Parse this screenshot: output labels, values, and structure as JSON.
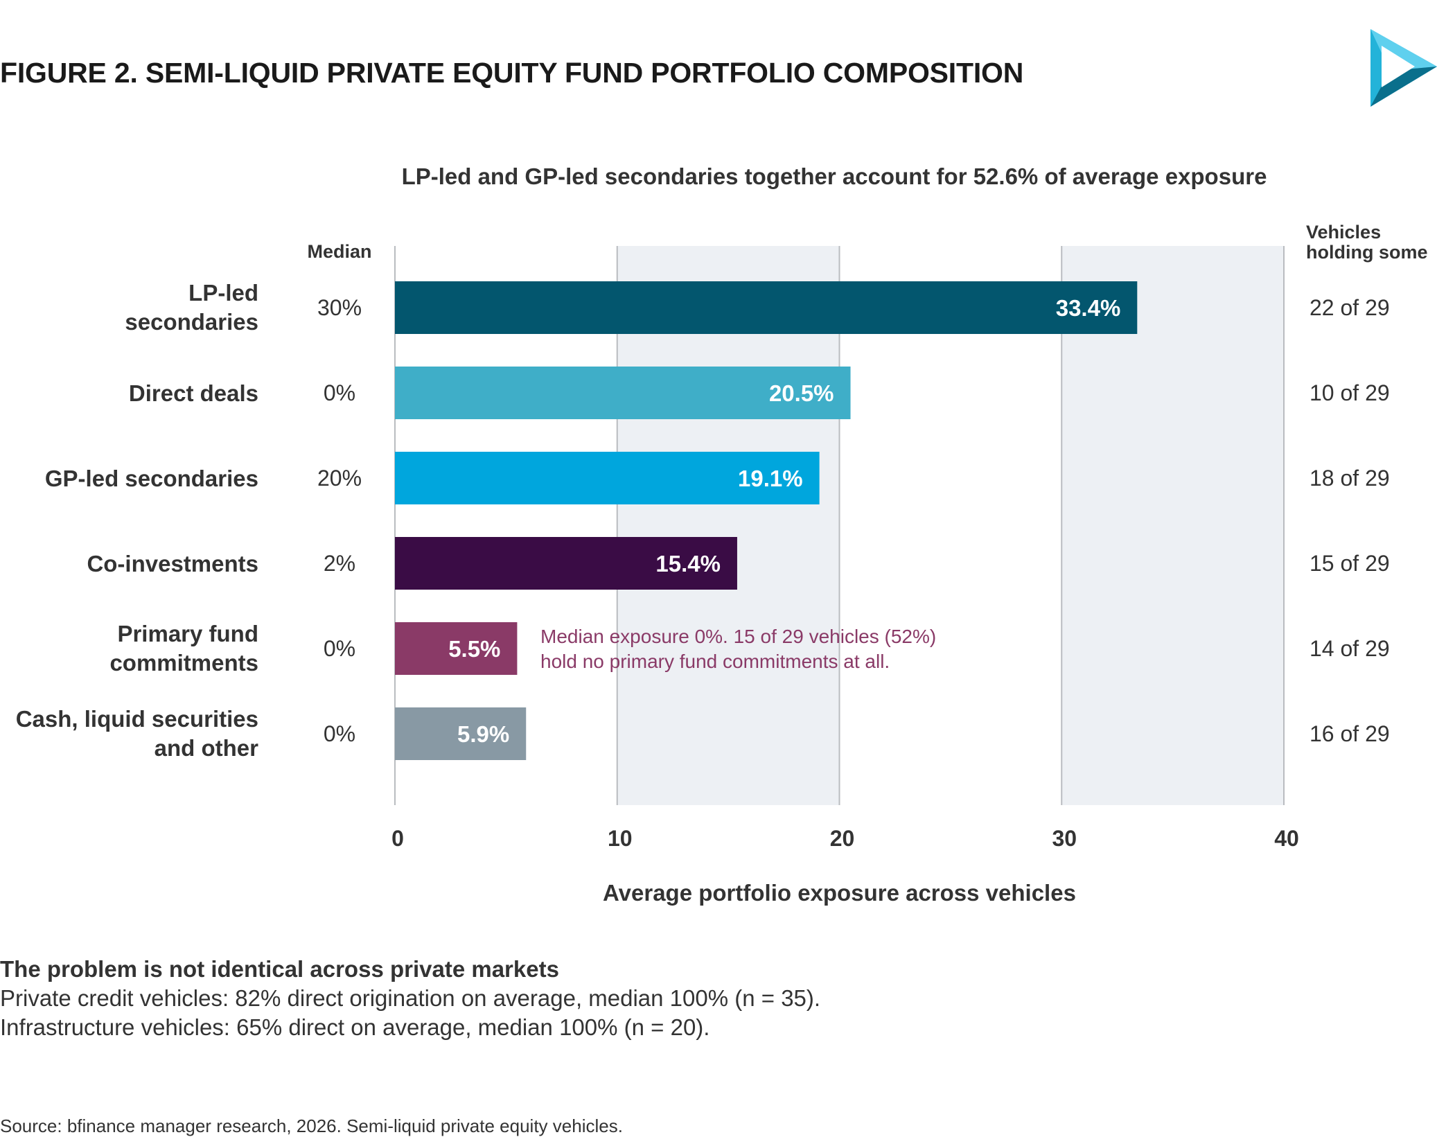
{
  "figure_title": "FIGURE 2. SEMI-LIQUID PRIVATE EQUITY FUND PORTFOLIO COMPOSITION",
  "logo_icon": "play-triangle-logo-icon",
  "colors": {
    "band": "#edf0f4",
    "gridline": "#b9bcc0",
    "annotation": "#8a3a67",
    "text": "#333333"
  },
  "chart_data": {
    "type": "bar",
    "orientation": "horizontal",
    "title": "LP-led and GP-led secondaries together account for 52.6% of average exposure",
    "xlabel": "Average portfolio exposure across vehicles",
    "ylabel": "",
    "xlim": [
      0,
      40
    ],
    "xticks": [
      0,
      10,
      20,
      30,
      40
    ],
    "shaded_bands": [
      [
        10,
        20
      ],
      [
        30,
        40
      ]
    ],
    "median_header": "Median",
    "vehicles_header": [
      "Vehicles",
      "holding some"
    ],
    "categories": [
      [
        "LP-led",
        "secondaries"
      ],
      [
        "Direct deals"
      ],
      [
        "GP-led secondaries"
      ],
      [
        "Co-investments"
      ],
      [
        "Primary fund",
        "commitments"
      ],
      [
        "Cash, liquid securities",
        "and other"
      ]
    ],
    "values": [
      33.4,
      20.5,
      19.1,
      15.4,
      5.5,
      5.9
    ],
    "value_labels": [
      "33.4%",
      "20.5%",
      "19.1%",
      "15.4%",
      "5.5%",
      "5.9%"
    ],
    "bar_colors": [
      "#03566e",
      "#3faec8",
      "#00a6dd",
      "#3a0c45",
      "#8a3a67",
      "#8899a4"
    ],
    "medians": [
      "30%",
      "0%",
      "20%",
      "2%",
      "0%",
      "0%"
    ],
    "vehicles_holding": [
      "22 of 29",
      "10 of 29",
      "18 of 29",
      "15 of 29",
      "14 of 29",
      "16 of 29"
    ],
    "annotation": {
      "category_index": 4,
      "lines": [
        "Median exposure 0%. 15 of 29 vehicles (52%)",
        "hold no primary fund commitments at all."
      ]
    }
  },
  "notes": {
    "heading": "The problem is not identical across private markets",
    "lines": [
      "Private credit vehicles: 82% direct origination on average, median 100% (n = 35).",
      "Infrastructure vehicles: 65% direct on average, median 100% (n = 20)."
    ]
  },
  "source": "Source: bfinance manager research, 2026. Semi-liquid private equity vehicles."
}
